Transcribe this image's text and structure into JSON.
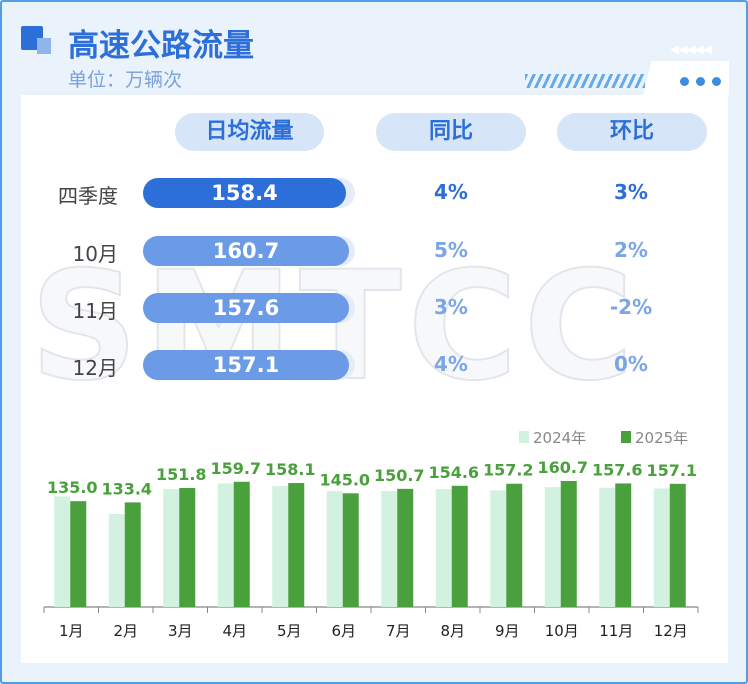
{
  "title": "高速公路流量",
  "unit": "单位：万辆次",
  "watermark": "SMTCC",
  "table": {
    "headers": [
      "日均流量",
      "同比",
      "环比"
    ],
    "rows": [
      {
        "label": "四季度",
        "value": "158.4",
        "yoy": "4%",
        "mom": "3%"
      },
      {
        "label": "10月",
        "value": "160.7",
        "yoy": "5%",
        "mom": "2%"
      },
      {
        "label": "11月",
        "value": "157.6",
        "yoy": "3%",
        "mom": "-2%"
      },
      {
        "label": "12月",
        "value": "157.1",
        "yoy": "4%",
        "mom": "0%"
      }
    ]
  },
  "colors": {
    "accent": "#2d6fd8",
    "bar2024": "#d3f1e0",
    "bar2025": "#4aa03c",
    "label": "#4aa03c"
  },
  "chart_data": {
    "type": "bar",
    "categories": [
      "1月",
      "2月",
      "3月",
      "4月",
      "5月",
      "6月",
      "7月",
      "8月",
      "9月",
      "10月",
      "11月",
      "12月"
    ],
    "series": [
      {
        "name": "2024年",
        "values": [
          141,
          118.5,
          150.3,
          157.6,
          154.2,
          147.8,
          147.8,
          150.3,
          148.7,
          152.9,
          152.1,
          151.2
        ]
      },
      {
        "name": "2025年",
        "values": [
          135.0,
          133.4,
          151.8,
          159.7,
          158.1,
          145.0,
          150.7,
          154.6,
          157.2,
          160.7,
          157.6,
          157.1
        ]
      }
    ],
    "data_labels": [
      "135.0",
      "133.4",
      "151.8",
      "159.7",
      "158.1",
      "145.0",
      "150.7",
      "154.6",
      "157.2",
      "160.7",
      "157.6",
      "157.1"
    ],
    "ylim": [
      0,
      165
    ],
    "legend": "top-right",
    "grid": false
  }
}
